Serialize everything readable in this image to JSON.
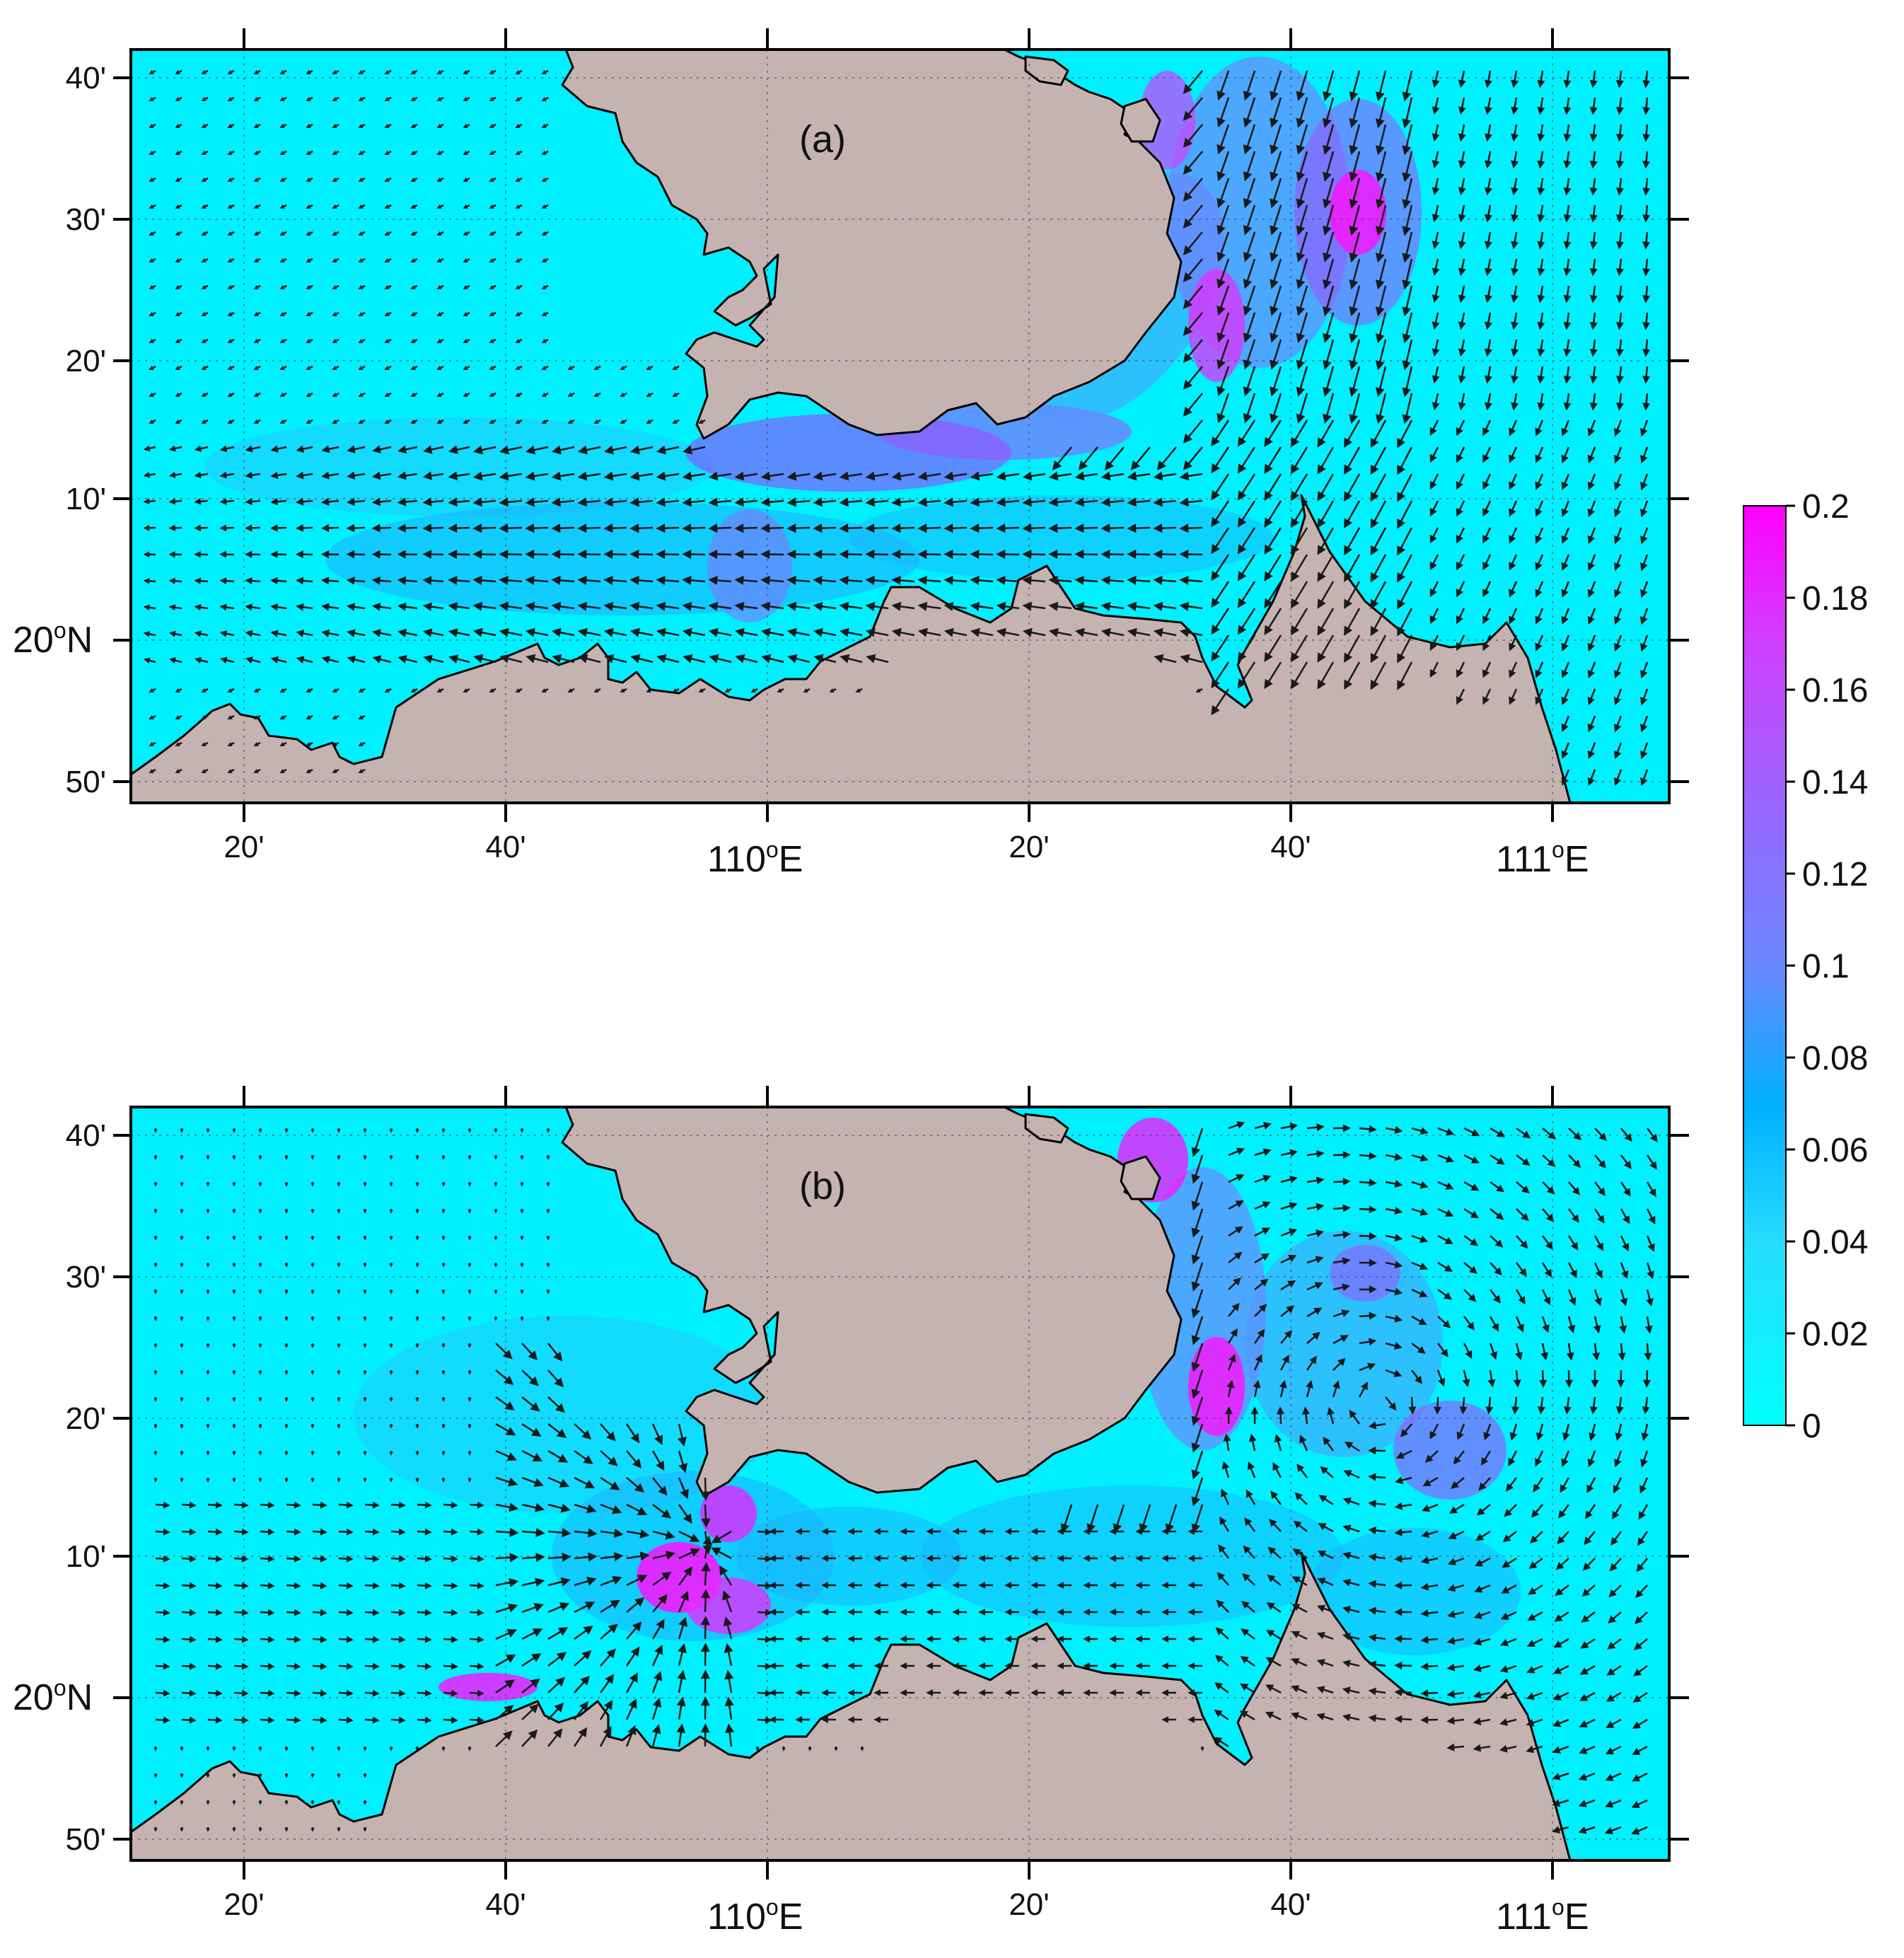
{
  "figure": {
    "panels": [
      {
        "tag": "(a)",
        "x_labels": [
          "20'",
          "40'",
          "110",
          "20'",
          "40'",
          "111"
        ],
        "y_labels": [
          "40'",
          "30'",
          "20'",
          "10'",
          "20",
          "50'"
        ]
      },
      {
        "tag": "(b)",
        "x_labels": [
          "20'",
          "40'",
          "110",
          "20'",
          "40'",
          "111"
        ],
        "y_labels": [
          "40'",
          "30'",
          "20'",
          "10'",
          "20",
          "50'"
        ]
      }
    ],
    "degree_symbol": "o",
    "east_suffix": "E",
    "north_suffix": "N",
    "colorbar": {
      "ticks": [
        "0.2",
        "0.18",
        "0.16",
        "0.14",
        "0.12",
        "0.1",
        "0.08",
        "0.06",
        "0.04",
        "0.02",
        "0"
      ],
      "colors": [
        "#00ffff",
        "#33d4ff",
        "#00b0ff",
        "#5a8cff",
        "#a060ff",
        "#ff00ff"
      ]
    },
    "colors": {
      "sea": "#00f0ff",
      "land": "#c4b3b1",
      "arrow": "#1a1a1a"
    }
  }
}
